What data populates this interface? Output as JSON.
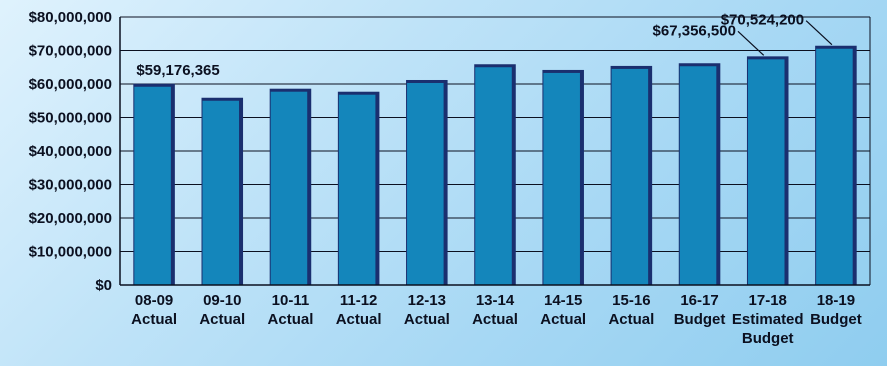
{
  "chart_data": {
    "type": "bar",
    "title": "",
    "xlabel": "",
    "ylabel": "",
    "ylim": [
      0,
      80000000
    ],
    "grid": true,
    "legend": "none",
    "y_tick_values": [
      0,
      10000000,
      20000000,
      30000000,
      40000000,
      50000000,
      60000000,
      70000000,
      80000000
    ],
    "y_tick_labels": [
      "$0",
      "$10,000,000",
      "$20,000,000",
      "$30,000,000",
      "$40,000,000",
      "$50,000,000",
      "$60,000,000",
      "$70,000,000",
      "$80,000,000"
    ],
    "categories": [
      [
        "08-09",
        "Actual"
      ],
      [
        "09-10",
        "Actual"
      ],
      [
        "10-11",
        "Actual"
      ],
      [
        "11-12",
        "Actual"
      ],
      [
        "12-13",
        "Actual"
      ],
      [
        "13-14",
        "Actual"
      ],
      [
        "14-15",
        "Actual"
      ],
      [
        "15-16",
        "Actual"
      ],
      [
        "16-17",
        "Budget"
      ],
      [
        "17-18",
        "Estimated",
        "Budget"
      ],
      [
        "18-19",
        "Budget"
      ]
    ],
    "values": [
      59176365,
      55000000,
      57700000,
      56800000,
      60300000,
      65000000,
      63300000,
      64500000,
      65300000,
      67356500,
      70524200
    ],
    "data_labels": [
      {
        "index": 0,
        "text": "$59,176,365"
      },
      {
        "index": 9,
        "text": "$67,356,500"
      },
      {
        "index": 10,
        "text": "$70,524,200"
      }
    ],
    "colors": {
      "bar": "#1486bb",
      "bar_shadow": "#1a2f6f",
      "gridline": "#0b1020",
      "text": "#0b1020"
    }
  }
}
